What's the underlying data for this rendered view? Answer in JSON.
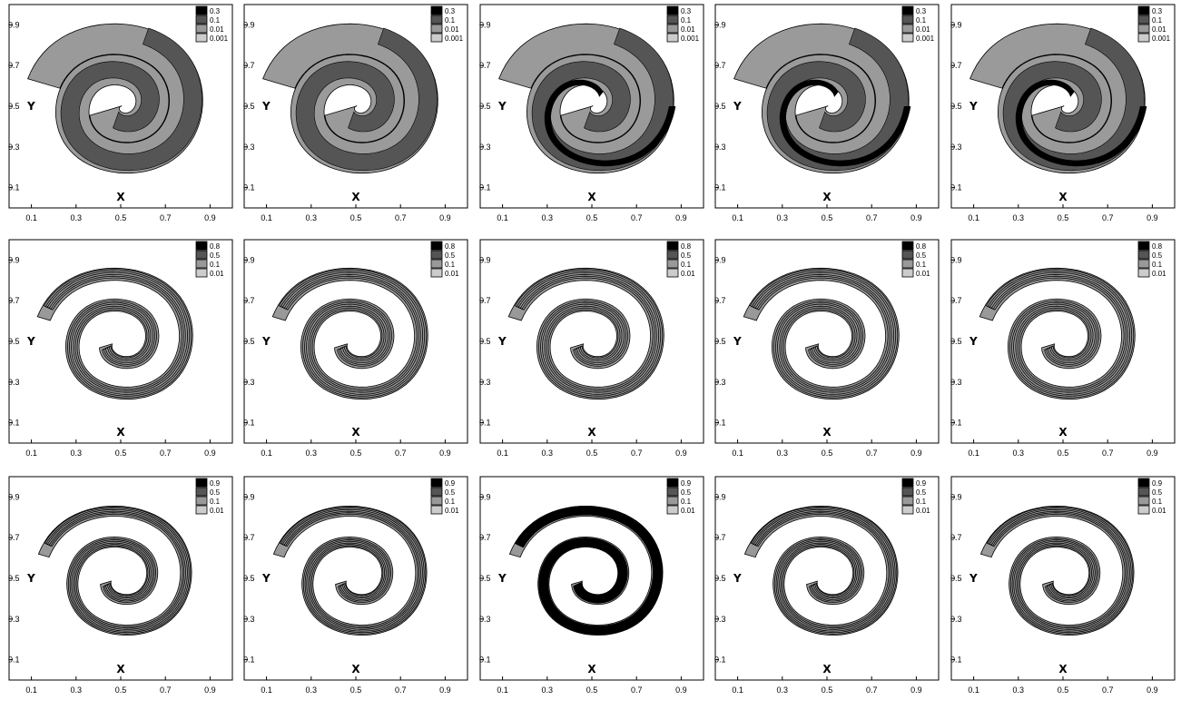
{
  "chart_data": {
    "type": "contour",
    "rows": [
      {
        "legend_levels": [
          "0.3",
          "0.1",
          "0.01",
          "0.001"
        ]
      },
      {
        "legend_levels": [
          "0.8",
          "0.5",
          "0.1",
          "0.01"
        ]
      },
      {
        "legend_levels": [
          "0.9",
          "0.5",
          "0.1",
          "0.01"
        ]
      }
    ],
    "columns": 5,
    "legend_colors": [
      "#000000",
      "#555555",
      "#999999",
      "#cccccc"
    ],
    "xlabel": "X",
    "ylabel": "Y",
    "xticks": [
      "0.1",
      "0.3",
      "0.5",
      "0.7",
      "0.9"
    ],
    "yticks": [
      "0.1",
      "0.3",
      "0.5",
      "0.7",
      "0.9"
    ],
    "xlim": [
      0.0,
      1.0
    ],
    "ylim": [
      0.0,
      1.0
    ],
    "grid": false,
    "legend_position": "top-right"
  }
}
